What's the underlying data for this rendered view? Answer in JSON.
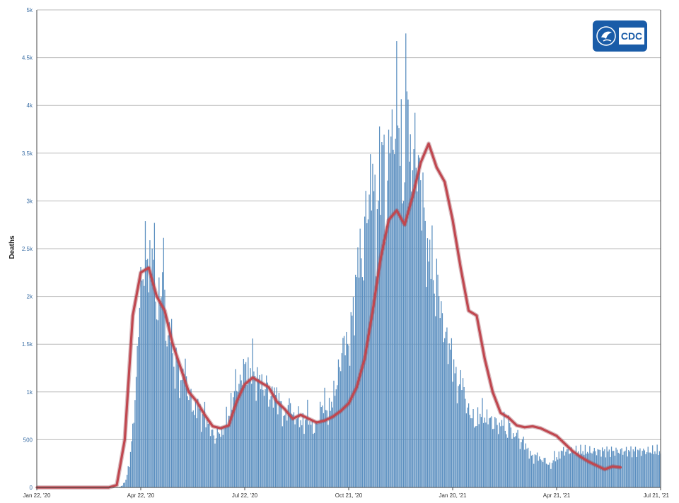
{
  "logo": {
    "text": "CDC",
    "icon": "hhs-eagle-icon",
    "color": "#1a5ca8"
  },
  "colors": {
    "bars": "#5b8fc0",
    "moving_average": "#c0474f",
    "grid": "#b9b9b9"
  },
  "chart_data": {
    "type": "bar",
    "title": "",
    "xlabel": "",
    "ylabel": "Deaths",
    "ylim": [
      0,
      5000
    ],
    "y_ticks": [
      0,
      500,
      1000,
      1500,
      2000,
      2500,
      3000,
      3500,
      4000,
      4500,
      5000
    ],
    "y_tick_labels": [
      "0",
      "500",
      "1k",
      "1.5k",
      "2k",
      "2.5k",
      "3k",
      "3.5k",
      "4k",
      "4.5k",
      "5k"
    ],
    "x_tick_labels": [
      "Jan 22, '20",
      "Apr 22, '20",
      "Jul 22, '20",
      "Oct 21, '20",
      "Jan 20, '21",
      "Apr 21, '21",
      "Jul 21, '21"
    ],
    "x_tick_days": [
      0,
      91,
      182,
      273,
      364,
      455,
      546
    ],
    "x_range_days": [
      0,
      546
    ],
    "grid": "horizontal",
    "legend": "none",
    "series": [
      {
        "type": "bar",
        "sample_every_days": 3,
        "values": [
          0,
          0,
          0,
          0,
          0,
          0,
          0,
          0,
          0,
          0,
          0,
          0,
          0,
          0,
          0,
          0,
          0,
          0,
          0,
          0,
          0,
          0,
          0,
          2,
          5,
          20,
          80,
          250,
          600,
          1100,
          2000,
          2250,
          2500,
          2200,
          2650,
          1800,
          2000,
          2400,
          1400,
          1800,
          1200,
          1350,
          1000,
          1350,
          1000,
          950,
          750,
          900,
          700,
          800,
          650,
          600,
          500,
          600,
          550,
          700,
          750,
          900,
          1100,
          1050,
          1200,
          1300,
          1150,
          1350,
          1050,
          1200,
          1000,
          1100,
          900,
          1000,
          950,
          900,
          700,
          800,
          900,
          700,
          750,
          700,
          650,
          800,
          650,
          600,
          700,
          850,
          900,
          750,
          900,
          1000,
          1200,
          1400,
          1600,
          1400,
          1800,
          2000,
          2600,
          2200,
          2900,
          3000,
          3400,
          2600,
          3300,
          3600,
          2700,
          3900,
          3500,
          4100,
          3700,
          3000,
          4550,
          3200,
          3600,
          3400,
          3200,
          2900,
          2300,
          2600,
          2000,
          2200,
          1800,
          1600,
          1500,
          1400,
          1200,
          1000,
          1200,
          900,
          800,
          750,
          650,
          750,
          800,
          700,
          750,
          650,
          700,
          600,
          750,
          550,
          700,
          500,
          600,
          450,
          500,
          400,
          350,
          300,
          350,
          280,
          300,
          250,
          220,
          330,
          300,
          380
        ]
      },
      {
        "type": "line",
        "name": "",
        "sample_every_days": 7,
        "values": [
          0,
          0,
          0,
          0,
          0,
          0,
          0,
          0,
          0,
          0,
          25,
          500,
          1800,
          2250,
          2300,
          2000,
          1850,
          1500,
          1250,
          1000,
          900,
          760,
          640,
          620,
          650,
          900,
          1080,
          1150,
          1100,
          1050,
          900,
          820,
          720,
          760,
          720,
          680,
          700,
          740,
          800,
          880,
          1050,
          1350,
          1850,
          2400,
          2800,
          2900,
          2750,
          3050,
          3400,
          3600,
          3350,
          3200,
          2800,
          2300,
          1850,
          1800,
          1350,
          1000,
          780,
          730,
          650,
          630,
          640,
          620,
          580,
          540,
          460,
          380,
          320,
          270,
          230,
          190,
          220,
          210
        ]
      }
    ]
  }
}
